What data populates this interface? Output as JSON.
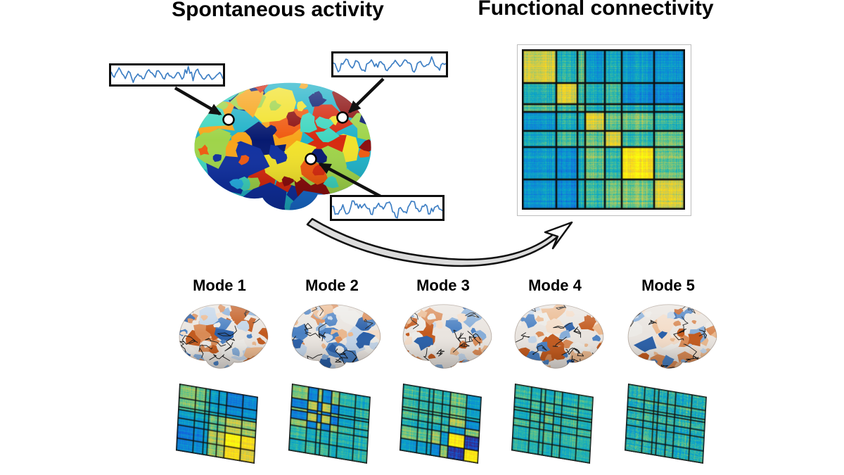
{
  "figure": {
    "background": "#ffffff",
    "title_left": "Spontaneous activity",
    "title_right": "Functional connectivity"
  },
  "spontaneous": {
    "brain": {
      "seed": 7,
      "base_color": "#20b2c8",
      "jet_palette": [
        "#8c0f0f",
        "#d62a10",
        "#f05a10",
        "#f7a41a",
        "#f2e22b",
        "#9fd44a",
        "#3fd6c0",
        "#28b4e8",
        "#1a6fd4",
        "#1030a0",
        "#071a70"
      ]
    },
    "seed_point_count": 3,
    "timeseries": {
      "color": "#3e7fc4",
      "insets": [
        {
          "name": "timeseries-left",
          "seed": 3
        },
        {
          "name": "timeseries-right",
          "seed": 8
        },
        {
          "name": "timeseries-bottom",
          "seed": 15
        }
      ]
    }
  },
  "functional_connectivity": {
    "matrix_type": "heatmap",
    "n_networks": 7,
    "colormap_parula": [
      [
        53,
        42,
        135
      ],
      [
        15,
        92,
        221
      ],
      [
        18,
        125,
        216
      ],
      [
        7,
        156,
        207
      ],
      [
        33,
        181,
        176
      ],
      [
        121,
        198,
        122
      ],
      [
        200,
        202,
        85
      ],
      [
        252,
        210,
        28
      ],
      [
        249,
        251,
        14
      ]
    ],
    "block_fractions": [
      0.21,
      0.13,
      0.05,
      0.12,
      0.1,
      0.2,
      0.19
    ],
    "block_means": [
      [
        0.78,
        0.48,
        0.58,
        0.36,
        0.44,
        0.38,
        0.36
      ],
      [
        0.48,
        0.8,
        0.52,
        0.46,
        0.52,
        0.32,
        0.3
      ],
      [
        0.58,
        0.52,
        0.6,
        0.46,
        0.5,
        0.46,
        0.46
      ],
      [
        0.36,
        0.46,
        0.46,
        0.78,
        0.58,
        0.6,
        0.52
      ],
      [
        0.44,
        0.52,
        0.5,
        0.58,
        0.76,
        0.5,
        0.6
      ],
      [
        0.38,
        0.32,
        0.46,
        0.6,
        0.5,
        0.93,
        0.62
      ],
      [
        0.36,
        0.3,
        0.46,
        0.52,
        0.6,
        0.62,
        0.8
      ]
    ],
    "seed": 99,
    "frame_color": "#bdbdbd",
    "grid_color": "#0f0f0f"
  },
  "modes": [
    {
      "label": "Mode 1",
      "seed": 21,
      "brain_seed": 41,
      "warm_ratio": 0.42,
      "gain": 0.47,
      "weights": [
        0.55,
        0.45,
        0.2,
        -0.45,
        -0.5,
        -1.0,
        -0.8
      ]
    },
    {
      "label": "Mode 2",
      "seed": 22,
      "brain_seed": 42,
      "warm_ratio": 0.5,
      "gain": 0.45,
      "weights": [
        0.6,
        -0.75,
        0.7,
        -0.75,
        0.65,
        0.15,
        -0.1
      ]
    },
    {
      "label": "Mode 3",
      "seed": 23,
      "brain_seed": 43,
      "warm_ratio": 0.78,
      "gain": 0.5,
      "weights": [
        0.25,
        0.2,
        0.15,
        0.4,
        -0.3,
        0.95,
        -0.95
      ]
    },
    {
      "label": "Mode 4",
      "seed": 24,
      "brain_seed": 44,
      "warm_ratio": 0.7,
      "gain": 0.32,
      "weights": [
        0.35,
        -0.3,
        0.45,
        -0.55,
        0.4,
        -0.25,
        0.2
      ]
    },
    {
      "label": "Mode 5",
      "seed": 25,
      "brain_seed": 45,
      "warm_ratio": 0.5,
      "gain": 0.22,
      "weights": [
        0.3,
        -0.25,
        0.2,
        -0.2,
        0.3,
        -0.35,
        0.25
      ]
    }
  ],
  "mode_brain_palette": [
    "#2a5fa8",
    "#4a80c2",
    "#86add8",
    "#c2d4e8",
    "#eceae6",
    "#f3dcc8",
    "#eab88e",
    "#d98a55",
    "#c25a1e"
  ],
  "mode_brain_base": "#e9e4df",
  "arrows": {
    "color": "#111111",
    "swoosh_fill": "#dcdcdc",
    "dot_fill": "#ffffff"
  }
}
